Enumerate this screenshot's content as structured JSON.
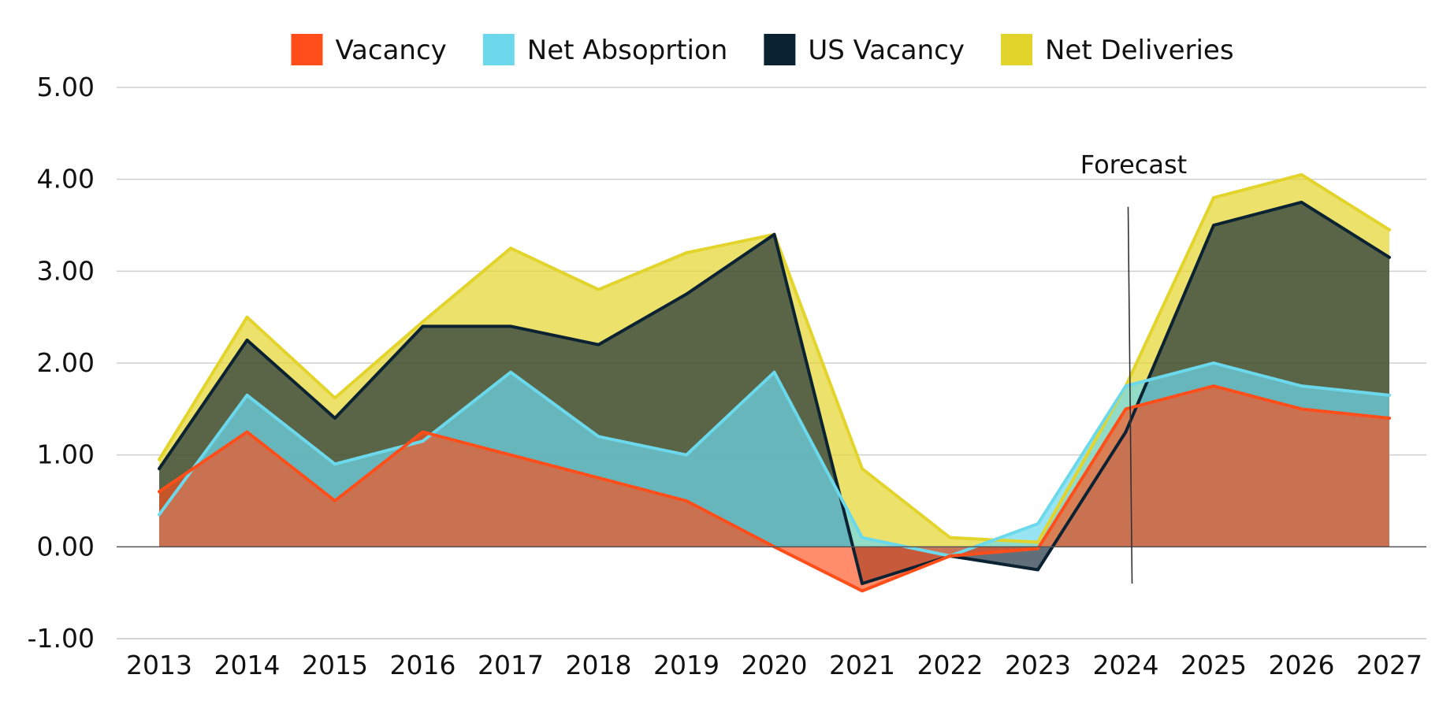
{
  "chart_data": {
    "type": "area",
    "title": "",
    "xlabel": "",
    "ylabel": "",
    "categories": [
      "2013",
      "2014",
      "2015",
      "2016",
      "2017",
      "2018",
      "2019",
      "2020",
      "2021",
      "2022",
      "2023",
      "2024",
      "2025",
      "2026",
      "2027"
    ],
    "ylim": [
      -1,
      5
    ],
    "yticks": [
      5,
      4,
      3,
      2,
      1,
      0,
      -1
    ],
    "ytick_labels": [
      "5.00",
      "4.00",
      "3.00",
      "2.00",
      "1.00",
      "0.00",
      "-1.00"
    ],
    "grid": true,
    "legend_position": "top-center",
    "series": [
      {
        "name": "Net Deliveries",
        "fill": "#e3d42c",
        "fill_opacity": 0.7,
        "stroke": "#e3d42c",
        "values": [
          0.95,
          2.5,
          1.62,
          2.45,
          3.25,
          2.8,
          3.2,
          3.4,
          0.85,
          0.1,
          0.05,
          1.75,
          3.8,
          4.05,
          3.45
        ]
      },
      {
        "name": "US Vacancy",
        "fill": "#0b2233",
        "fill_opacity": 0.65,
        "stroke": "#0b2233",
        "values": [
          0.85,
          2.25,
          1.4,
          2.4,
          2.4,
          2.2,
          2.75,
          3.4,
          -0.4,
          -0.1,
          -0.25,
          1.25,
          3.5,
          3.75,
          3.15
        ]
      },
      {
        "name": "Net Absoprtion",
        "fill": "#6cd8ec",
        "fill_opacity": 0.7,
        "stroke": "#6cd8ec",
        "values": [
          0.35,
          1.65,
          0.9,
          1.15,
          1.9,
          1.2,
          1.0,
          1.9,
          0.1,
          -0.1,
          0.25,
          1.75,
          2.0,
          1.75,
          1.65
        ]
      },
      {
        "name": "Vacancy",
        "fill": "#ff4e1a",
        "fill_opacity": 0.65,
        "stroke": "#ff4e1a",
        "values": [
          0.6,
          1.25,
          0.5,
          1.25,
          1.0,
          0.75,
          0.5,
          0.0,
          -0.48,
          -0.1,
          -0.02,
          1.5,
          1.75,
          1.5,
          1.4
        ]
      }
    ],
    "legend": [
      {
        "name": "Vacancy",
        "color": "#ff4e1a"
      },
      {
        "name": "Net Absoprtion",
        "color": "#6cd8ec"
      },
      {
        "name": "US Vacancy",
        "color": "#0b2233"
      },
      {
        "name": "Net Deliveries",
        "color": "#e3d42c"
      }
    ],
    "annotations": [
      {
        "text": "Forecast",
        "at_category": "2024"
      }
    ]
  }
}
